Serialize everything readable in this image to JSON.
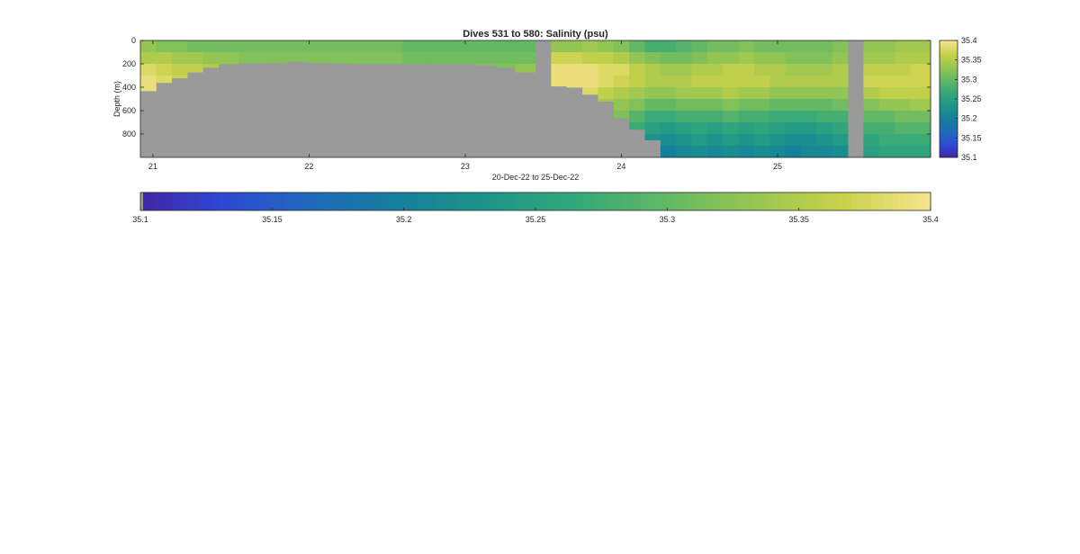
{
  "figure": {
    "title": "Dives 531 to 580: Salinity (psu)",
    "xlabel": "20-Dec-22 to 25-Dec-22",
    "ylabel": "Depth (m)"
  },
  "colors": {
    "land_mask": "#9a9a9a",
    "axis": "#262626",
    "colormap_stops": [
      "#3e26a8",
      "#2e4ad3",
      "#1f6bb8",
      "#15809c",
      "#1e9688",
      "#35a879",
      "#63b865",
      "#97c651",
      "#cad24a",
      "#f7e58f"
    ]
  },
  "chart_data": [
    {
      "type": "heatmap",
      "title": "Dives 531 to 580: Salinity (psu)",
      "xlabel": "20-Dec-22 to 25-Dec-22",
      "ylabel": "Depth (m)",
      "x_unit": "day of December 2022",
      "xlim": [
        20.92,
        25.98
      ],
      "ylim": [
        0,
        1000
      ],
      "y_reversed": true,
      "x_ticks": [
        21,
        22,
        23,
        24,
        25
      ],
      "x_tick_labels": [
        "21",
        "22",
        "23",
        "24",
        "25"
      ],
      "y_ticks": [
        0,
        200,
        400,
        600,
        800
      ],
      "y_tick_labels": [
        "0",
        "200",
        "400",
        "600",
        "800"
      ],
      "color_limits": [
        35.1,
        35.4
      ],
      "depth_levels_m": [
        0,
        100,
        200,
        300,
        400,
        500,
        600,
        700,
        800,
        900,
        1000
      ],
      "profiles": [
        {
          "day": 20.92,
          "max_depth_m": 430,
          "salinity": [
            35.33,
            35.35,
            35.38,
            35.39,
            35.39
          ]
        },
        {
          "day": 21.02,
          "max_depth_m": 360,
          "salinity": [
            35.32,
            35.35,
            35.37,
            35.38
          ]
        },
        {
          "day": 21.12,
          "max_depth_m": 320,
          "salinity": [
            35.32,
            35.34,
            35.36,
            35.37
          ]
        },
        {
          "day": 21.22,
          "max_depth_m": 270,
          "salinity": [
            35.31,
            35.34,
            35.36
          ]
        },
        {
          "day": 21.32,
          "max_depth_m": 230,
          "salinity": [
            35.31,
            35.33,
            35.35
          ]
        },
        {
          "day": 21.42,
          "max_depth_m": 200,
          "salinity": [
            35.31,
            35.33,
            35.34
          ]
        },
        {
          "day": 21.55,
          "max_depth_m": 195,
          "salinity": [
            35.31,
            35.32,
            35.33
          ]
        },
        {
          "day": 21.7,
          "max_depth_m": 190,
          "salinity": [
            35.31,
            35.32,
            35.33
          ]
        },
        {
          "day": 21.85,
          "max_depth_m": 180,
          "salinity": [
            35.31,
            35.32,
            35.33
          ]
        },
        {
          "day": 22.0,
          "max_depth_m": 190,
          "salinity": [
            35.31,
            35.32,
            35.33
          ]
        },
        {
          "day": 22.15,
          "max_depth_m": 195,
          "salinity": [
            35.31,
            35.32,
            35.32
          ]
        },
        {
          "day": 22.3,
          "max_depth_m": 200,
          "salinity": [
            35.31,
            35.32,
            35.32
          ]
        },
        {
          "day": 22.45,
          "max_depth_m": 200,
          "salinity": [
            35.31,
            35.32,
            35.32
          ]
        },
        {
          "day": 22.6,
          "max_depth_m": 200,
          "salinity": [
            35.3,
            35.31,
            35.32
          ]
        },
        {
          "day": 22.75,
          "max_depth_m": 200,
          "salinity": [
            35.3,
            35.31,
            35.32
          ]
        },
        {
          "day": 22.9,
          "max_depth_m": 200,
          "salinity": [
            35.3,
            35.31,
            35.32
          ]
        },
        {
          "day": 23.05,
          "max_depth_m": 210,
          "salinity": [
            35.3,
            35.31,
            35.32
          ]
        },
        {
          "day": 23.2,
          "max_depth_m": 230,
          "salinity": [
            35.3,
            35.31,
            35.32
          ]
        },
        {
          "day": 23.32,
          "max_depth_m": 270,
          "salinity": [
            35.3,
            35.31,
            35.33
          ]
        },
        {
          "day": 23.45,
          "max_depth_m": 0,
          "salinity": []
        },
        {
          "day": 23.55,
          "max_depth_m": 390,
          "salinity": [
            35.33,
            35.37,
            35.39,
            35.39
          ]
        },
        {
          "day": 23.65,
          "max_depth_m": 400,
          "salinity": [
            35.33,
            35.37,
            35.39,
            35.39
          ]
        },
        {
          "day": 23.75,
          "max_depth_m": 460,
          "salinity": [
            35.34,
            35.36,
            35.39,
            35.39,
            35.38
          ]
        },
        {
          "day": 23.85,
          "max_depth_m": 520,
          "salinity": [
            35.33,
            35.36,
            35.38,
            35.38,
            35.36,
            35.34
          ]
        },
        {
          "day": 23.95,
          "max_depth_m": 660,
          "salinity": [
            35.32,
            35.35,
            35.38,
            35.37,
            35.35,
            35.33,
            35.32
          ]
        },
        {
          "day": 24.05,
          "max_depth_m": 760,
          "salinity": [
            35.3,
            35.33,
            35.36,
            35.36,
            35.34,
            35.32,
            35.29,
            35.27
          ]
        },
        {
          "day": 24.15,
          "max_depth_m": 850,
          "salinity": [
            35.28,
            35.32,
            35.35,
            35.35,
            35.33,
            35.3,
            35.27,
            35.25,
            35.23
          ]
        },
        {
          "day": 24.25,
          "max_depth_m": 1000,
          "salinity": [
            35.28,
            35.31,
            35.34,
            35.35,
            35.33,
            35.3,
            35.27,
            35.24,
            35.22,
            35.2,
            35.19
          ]
        },
        {
          "day": 24.35,
          "max_depth_m": 1000,
          "salinity": [
            35.29,
            35.31,
            35.34,
            35.35,
            35.34,
            35.31,
            35.28,
            35.25,
            35.23,
            35.21,
            35.19
          ]
        },
        {
          "day": 24.45,
          "max_depth_m": 1000,
          "salinity": [
            35.3,
            35.32,
            35.35,
            35.36,
            35.34,
            35.31,
            35.28,
            35.26,
            35.24,
            35.22,
            35.2
          ]
        },
        {
          "day": 24.55,
          "max_depth_m": 1000,
          "salinity": [
            35.31,
            35.33,
            35.35,
            35.36,
            35.34,
            35.31,
            35.28,
            35.25,
            35.23,
            35.21,
            35.19
          ]
        },
        {
          "day": 24.65,
          "max_depth_m": 1000,
          "salinity": [
            35.31,
            35.33,
            35.36,
            35.36,
            35.35,
            35.32,
            35.29,
            35.26,
            35.24,
            35.22,
            35.2
          ]
        },
        {
          "day": 24.75,
          "max_depth_m": 1000,
          "salinity": [
            35.32,
            35.34,
            35.36,
            35.36,
            35.34,
            35.31,
            35.28,
            35.25,
            35.23,
            35.21,
            35.19
          ]
        },
        {
          "day": 24.85,
          "max_depth_m": 1000,
          "salinity": [
            35.31,
            35.33,
            35.35,
            35.36,
            35.34,
            35.31,
            35.28,
            35.26,
            35.24,
            35.22,
            35.2
          ]
        },
        {
          "day": 24.95,
          "max_depth_m": 1000,
          "salinity": [
            35.31,
            35.33,
            35.35,
            35.35,
            35.33,
            35.3,
            35.27,
            35.25,
            35.23,
            35.21,
            35.19
          ]
        },
        {
          "day": 25.05,
          "max_depth_m": 1000,
          "salinity": [
            35.31,
            35.32,
            35.34,
            35.35,
            35.33,
            35.3,
            35.27,
            35.24,
            35.22,
            35.2,
            35.18
          ]
        },
        {
          "day": 25.15,
          "max_depth_m": 1000,
          "salinity": [
            35.31,
            35.32,
            35.34,
            35.35,
            35.33,
            35.3,
            35.27,
            35.24,
            35.22,
            35.21,
            35.19
          ]
        },
        {
          "day": 25.25,
          "max_depth_m": 1000,
          "salinity": [
            35.31,
            35.32,
            35.34,
            35.35,
            35.33,
            35.3,
            35.28,
            35.25,
            35.23,
            35.21,
            35.2
          ]
        },
        {
          "day": 25.35,
          "max_depth_m": 1000,
          "salinity": [
            35.32,
            35.33,
            35.35,
            35.35,
            35.33,
            35.31,
            35.28,
            35.26,
            35.24,
            35.22,
            35.21
          ]
        },
        {
          "day": 25.45,
          "max_depth_m": 0,
          "salinity": []
        },
        {
          "day": 25.55,
          "max_depth_m": 1000,
          "salinity": [
            35.33,
            35.34,
            35.36,
            35.37,
            35.35,
            35.32,
            35.3,
            35.28,
            35.26,
            35.25,
            35.24
          ]
        },
        {
          "day": 25.65,
          "max_depth_m": 1000,
          "salinity": [
            35.33,
            35.34,
            35.36,
            35.37,
            35.36,
            35.33,
            35.3,
            35.28,
            35.27,
            35.26,
            35.25
          ]
        },
        {
          "day": 25.75,
          "max_depth_m": 1000,
          "salinity": [
            35.34,
            35.35,
            35.36,
            35.37,
            35.36,
            35.33,
            35.31,
            35.29,
            35.27,
            35.26,
            35.25
          ]
        },
        {
          "day": 25.85,
          "max_depth_m": 1000,
          "salinity": [
            35.34,
            35.35,
            35.37,
            35.37,
            35.36,
            35.34,
            35.31,
            35.29,
            35.27,
            35.26,
            35.26
          ]
        }
      ]
    },
    {
      "type": "colorbar",
      "orientation": "vertical",
      "limits": [
        35.1,
        35.4
      ],
      "ticks": [
        35.1,
        35.15,
        35.2,
        35.25,
        35.3,
        35.35,
        35.4
      ],
      "tick_labels": [
        "35.1",
        "35.15",
        "35.2",
        "35.25",
        "35.3",
        "35.35",
        "35.4"
      ]
    },
    {
      "type": "colorbar",
      "orientation": "horizontal",
      "limits": [
        35.1,
        35.4
      ],
      "ticks": [
        35.1,
        35.15,
        35.2,
        35.25,
        35.3,
        35.35,
        35.4
      ],
      "tick_labels": [
        "35.1",
        "35.15",
        "35.2",
        "35.25",
        "35.3",
        "35.35",
        "35.4"
      ]
    }
  ]
}
